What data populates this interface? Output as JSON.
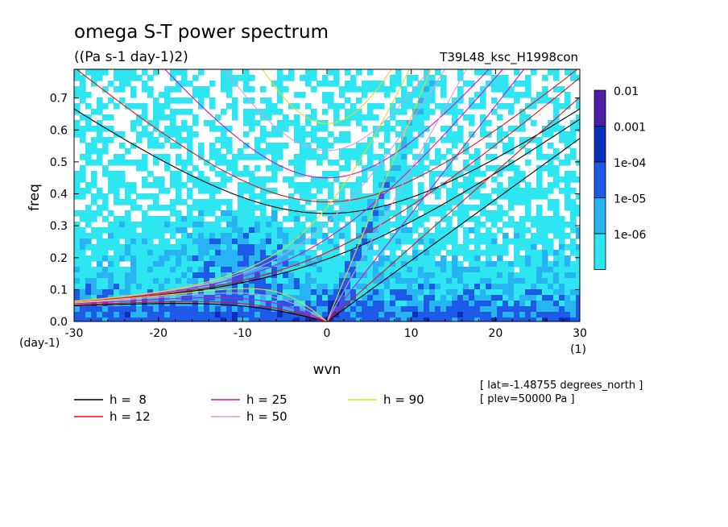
{
  "chart_data": {
    "type": "heatmap",
    "title": "omega S-T power spectrum",
    "subtitle": "((Pa s-1 day-1)2)",
    "run_label": "T39L48_ksc_H1998con",
    "xlabel": "wvn",
    "ylabel": "freq",
    "x_unit": "(1)",
    "y_unit": "(day-1)",
    "xlim": [
      -30,
      30
    ],
    "ylim": [
      0,
      0.79
    ],
    "x_ticks": [
      "-30",
      "-20",
      "-10",
      "0",
      "10",
      "20",
      "30"
    ],
    "x_tick_values": [
      -30,
      -20,
      -10,
      0,
      10,
      20,
      30
    ],
    "y_ticks": [
      "0.0",
      "0.1",
      "0.2",
      "0.3",
      "0.4",
      "0.5",
      "0.6",
      "0.7"
    ],
    "y_tick_values": [
      0,
      0.1,
      0.2,
      0.3,
      0.4,
      0.5,
      0.6,
      0.7
    ],
    "colorbar": {
      "labels": [
        "0.01",
        "0.001",
        "1e-04",
        "1e-05",
        "1e-06"
      ],
      "levels": [
        0.01,
        0.001,
        0.0001,
        1e-05,
        1e-06
      ],
      "colors": [
        "#4b1fa8",
        "#0a2fb8",
        "#1e5ae8",
        "#28b4f2",
        "#2ee6f2"
      ]
    },
    "field_colors": {
      "low": "#2ee6f2",
      "mid": "#28b4f2",
      "high": "#1e5ae8",
      "peak": "#0a2fb8"
    },
    "dispersion_curves": [
      {
        "name": "h =  8",
        "h": 8,
        "color": "#000000"
      },
      {
        "name": "h = 12",
        "h": 12,
        "color": "#e81010"
      },
      {
        "name": "h = 25",
        "h": 25,
        "color": "#d010c8"
      },
      {
        "name": "h = 50",
        "h": 50,
        "color": "#d898e0"
      },
      {
        "name": "h = 90",
        "h": 90,
        "color": "#e8d820"
      }
    ],
    "annotations": [
      "[ lat=-1.48755 degrees_north ]",
      "[ plev=50000 Pa ]"
    ]
  }
}
